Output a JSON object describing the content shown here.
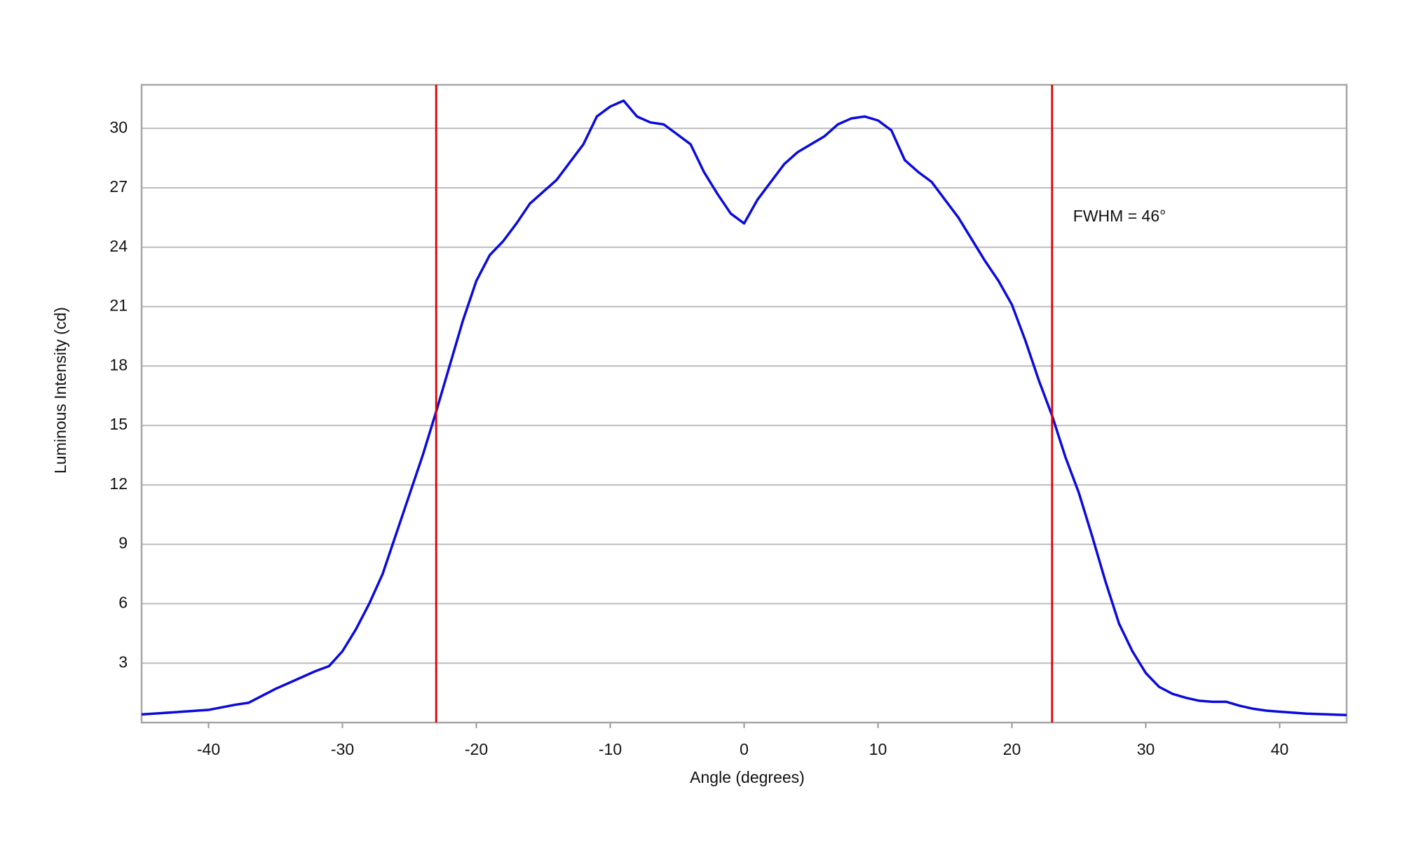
{
  "chart_data": {
    "type": "line",
    "xlabel": "Angle (degrees)",
    "ylabel": "Luminous Intensity (cd)",
    "x": [
      -45,
      -43,
      -40,
      -38,
      -37,
      -35,
      -34,
      -33,
      -32,
      -31,
      -30,
      -29,
      -28,
      -27,
      -26,
      -25,
      -24,
      -23,
      -22,
      -21,
      -20,
      -19,
      -18,
      -17,
      -16,
      -15,
      -14,
      -13,
      -12,
      -11,
      -10,
      -9,
      -8,
      -7,
      -6,
      -5,
      -4,
      -3,
      -2,
      -1,
      0,
      1,
      2,
      3,
      4,
      5,
      6,
      7,
      8,
      9,
      10,
      11,
      12,
      13,
      14,
      15,
      16,
      17,
      18,
      19,
      20,
      21,
      22,
      23,
      24,
      25,
      26,
      27,
      28,
      29,
      30,
      31,
      32,
      33,
      34,
      35,
      36,
      37,
      38,
      39,
      40,
      42,
      45
    ],
    "series": [
      {
        "color": "#0a0adc",
        "values": [
          0.41,
          0.5,
          0.64,
          0.9,
          1.0,
          1.7,
          2.0,
          2.3,
          2.6,
          2.85,
          3.6,
          4.7,
          6.0,
          7.5,
          9.5,
          11.5,
          13.5,
          15.7,
          18.0,
          20.3,
          22.3,
          23.6,
          24.3,
          25.2,
          26.2,
          26.8,
          27.4,
          28.3,
          29.2,
          30.6,
          31.1,
          31.4,
          30.6,
          30.3,
          30.2,
          29.7,
          29.2,
          27.8,
          26.7,
          25.7,
          25.2,
          26.4,
          27.3,
          28.2,
          28.8,
          29.2,
          29.6,
          30.2,
          30.5,
          30.6,
          30.4,
          29.9,
          28.4,
          27.8,
          27.3,
          26.4,
          25.5,
          24.4,
          23.3,
          22.3,
          21.1,
          19.3,
          17.3,
          15.5,
          13.4,
          11.6,
          9.4,
          7.1,
          5.0,
          3.6,
          2.5,
          1.8,
          1.45,
          1.25,
          1.1,
          1.05,
          1.05,
          0.85,
          0.7,
          0.6,
          0.55,
          0.45,
          0.38
        ]
      }
    ],
    "vlines": {
      "color": "#e00000",
      "values": [
        -23,
        23
      ]
    },
    "annotation": "FWHM = 46°",
    "xlim": [
      -45,
      45
    ],
    "ylim": [
      0,
      32.2
    ],
    "xticks": [
      -40,
      -30,
      -20,
      -10,
      0,
      10,
      20,
      30,
      40
    ],
    "yticks": [
      3,
      6,
      9,
      12,
      15,
      18,
      21,
      24,
      27,
      30
    ],
    "grid": true
  }
}
